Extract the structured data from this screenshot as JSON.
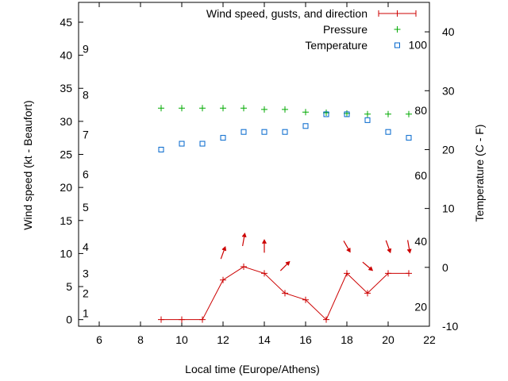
{
  "chart_data": {
    "type": "line",
    "xlabel": "Local time (Europe/Athens)",
    "ylabel": "Wind speed (kt - Beaufort)",
    "y2label": "Temperature (C - F)",
    "xlim": [
      5,
      22
    ],
    "xticks": [
      6,
      8,
      10,
      12,
      14,
      16,
      18,
      20,
      22
    ],
    "ylim": [
      -1,
      48
    ],
    "yticks": [
      0,
      5,
      10,
      15,
      20,
      25,
      30,
      35,
      40,
      45
    ],
    "beaufort_labels": [
      {
        "label": "1",
        "y": 1
      },
      {
        "label": "2",
        "y": 4
      },
      {
        "label": "3",
        "y": 7
      },
      {
        "label": "4",
        "y": 11
      },
      {
        "label": "5",
        "y": 17
      },
      {
        "label": "6",
        "y": 22
      },
      {
        "label": "7",
        "y": 28
      },
      {
        "label": "8",
        "y": 34
      },
      {
        "label": "9",
        "y": 41
      }
    ],
    "y2lim": [
      -10,
      45
    ],
    "y2ticks": [
      -10,
      0,
      10,
      20,
      30,
      40
    ],
    "fahrenheit_labels": [
      {
        "label": "20",
        "c": -6.7
      },
      {
        "label": "40",
        "c": 4.4
      },
      {
        "label": "60",
        "c": 15.6
      },
      {
        "label": "80",
        "c": 26.7
      },
      {
        "label": "100",
        "c": 37.8
      }
    ],
    "legend_position": "top-right",
    "series": [
      {
        "name": "Wind speed, gusts, and direction",
        "color": "#cc0000",
        "x": [
          9,
          10,
          11,
          12,
          13,
          14,
          15,
          16,
          17,
          18,
          19,
          20,
          21
        ],
        "values": [
          0,
          0,
          0,
          6,
          8,
          7,
          4,
          3,
          0,
          7,
          4,
          7,
          7
        ],
        "direction_deg": [
          null,
          null,
          null,
          200,
          190,
          180,
          225,
          null,
          null,
          330,
          310,
          340,
          350
        ]
      },
      {
        "name": "Pressure",
        "color": "#00aa00",
        "marker": "plus",
        "x": [
          9,
          10,
          11,
          12,
          13,
          14,
          15,
          16,
          17,
          18,
          19,
          20,
          21
        ],
        "values": [
          32,
          32,
          32,
          32,
          32,
          31.8,
          31.8,
          31.4,
          31.3,
          31.2,
          31.1,
          31.1,
          31.1
        ]
      },
      {
        "name": "Temperature",
        "color": "#0066cc",
        "marker": "square",
        "axis": "y2",
        "x": [
          9,
          10,
          11,
          12,
          13,
          14,
          15,
          16,
          17,
          18,
          19,
          20,
          21
        ],
        "values": [
          20,
          21,
          21,
          22,
          23,
          23,
          23,
          24,
          26,
          26,
          25,
          23,
          22
        ]
      }
    ]
  }
}
